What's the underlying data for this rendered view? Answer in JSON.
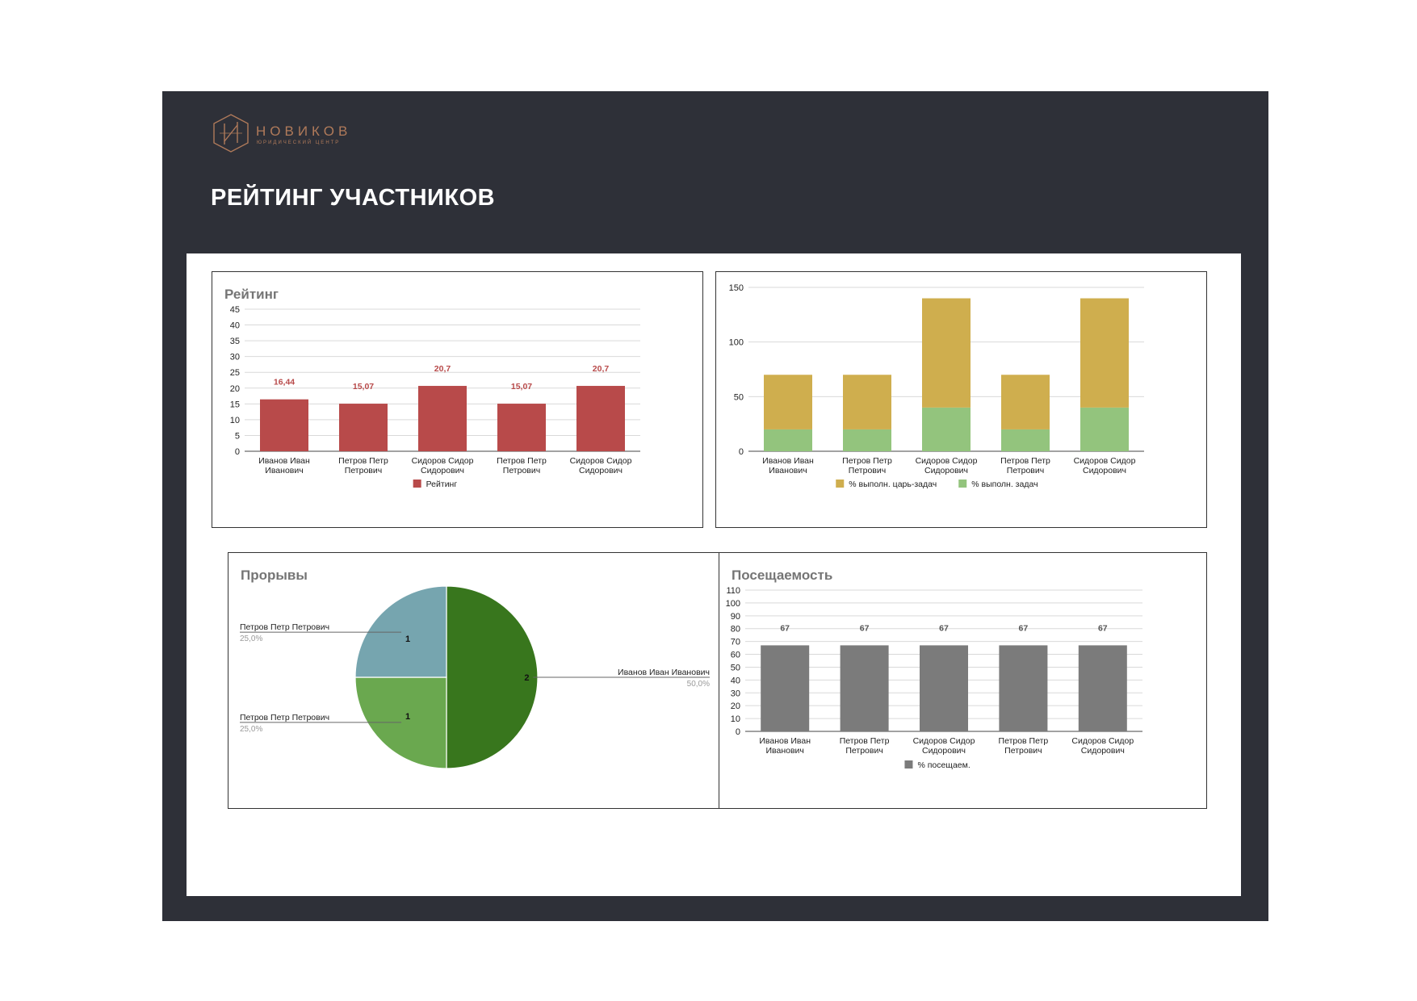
{
  "brand": {
    "name": "НОВИКОВ",
    "subtitle": "юридический центр"
  },
  "page": {
    "title": "РЕЙТИНГ УЧАСТНИКОВ"
  },
  "colors": {
    "frame": "#2e3038",
    "accent": "#b07a5a",
    "rating": "#b84a4a",
    "tsar": "#cfae4e",
    "tasks": "#93c47d",
    "attendance": "#7b7b7b",
    "pie_blue": "#76a5af",
    "pie_light_green": "#6aa84f",
    "pie_dark_green": "#38761d"
  },
  "chart_data": [
    {
      "id": "rating",
      "type": "bar",
      "title": "Рейтинг",
      "categories": [
        [
          "Иванов Иван",
          "Иванович"
        ],
        [
          "Петров Петр",
          "Петрович"
        ],
        [
          "Сидоров Сидор",
          "Сидорович"
        ],
        [
          "Петров Петр",
          "Петрович"
        ],
        [
          "Сидоров Сидор",
          "Сидорович"
        ]
      ],
      "series": [
        {
          "name": "Рейтинг",
          "values": [
            16.44,
            15.07,
            20.7,
            15.07,
            20.7
          ],
          "labels": [
            "16,44",
            "15,07",
            "20,7",
            "15,07",
            "20,7"
          ],
          "color": "#b84a4a"
        }
      ],
      "ylim": [
        0,
        45
      ],
      "yticks": [
        "0",
        "5",
        "10",
        "15",
        "20",
        "25",
        "30",
        "35",
        "40",
        "45"
      ],
      "legend": "bottom"
    },
    {
      "id": "tasks",
      "type": "bar",
      "stacked": true,
      "title": "",
      "categories": [
        [
          "Иванов Иван",
          "Иванович"
        ],
        [
          "Петров Петр",
          "Петрович"
        ],
        [
          "Сидоров Сидор",
          "Сидорович"
        ],
        [
          "Петров Петр",
          "Петрович"
        ],
        [
          "Сидоров Сидор",
          "Сидорович"
        ]
      ],
      "series": [
        {
          "name": "% выполн. задач",
          "values": [
            20,
            20,
            40,
            20,
            40
          ],
          "color": "#93c47d"
        },
        {
          "name": "% выполн. царь-задач",
          "values": [
            50,
            50,
            100,
            50,
            100
          ],
          "color": "#cfae4e"
        }
      ],
      "legend_order": [
        "% выполн. царь-задач",
        "% выполн. задач"
      ],
      "ylim": [
        0,
        150
      ],
      "yticks": [
        "0",
        "50",
        "100",
        "150"
      ],
      "legend": "bottom"
    },
    {
      "id": "breakthroughs",
      "type": "pie",
      "title": "Прорывы",
      "slices": [
        {
          "label": "Иванов Иван Иванович",
          "value": 2,
          "percent": "50,0%",
          "color": "#38761d"
        },
        {
          "label": "Петров Петр Петрович",
          "value": 1,
          "percent": "25,0%",
          "color": "#6aa84f"
        },
        {
          "label": "Петров Петр Петрович",
          "value": 1,
          "percent": "25,0%",
          "color": "#76a5af"
        }
      ]
    },
    {
      "id": "attendance",
      "type": "bar",
      "title": "Посещаемость",
      "categories": [
        [
          "Иванов Иван",
          "Иванович"
        ],
        [
          "Петров Петр",
          "Петрович"
        ],
        [
          "Сидоров Сидор",
          "Сидорович"
        ],
        [
          "Петров Петр",
          "Петрович"
        ],
        [
          "Сидоров Сидор",
          "Сидорович"
        ]
      ],
      "series": [
        {
          "name": "% посещаем.",
          "values": [
            67,
            67,
            67,
            67,
            67
          ],
          "labels": [
            "67",
            "67",
            "67",
            "67",
            "67"
          ],
          "color": "#7b7b7b"
        }
      ],
      "ylim": [
        0,
        110
      ],
      "yticks": [
        "0",
        "10",
        "20",
        "30",
        "40",
        "50",
        "60",
        "70",
        "80",
        "90",
        "100",
        "110"
      ],
      "legend": "bottom"
    }
  ]
}
